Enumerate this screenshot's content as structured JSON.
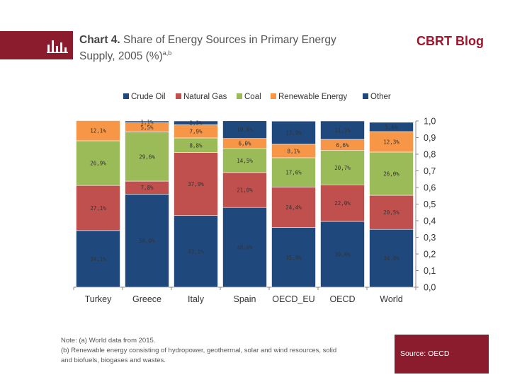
{
  "header": {
    "chart_label": "Chart 4.",
    "title_line1": "Share of Energy Sources in Primary Energy",
    "title_line2": "Supply, 2005 (%)",
    "title_superscript": "a,b",
    "blog_name": "CBRT Blog",
    "icon": "bar-chart-icon"
  },
  "note": {
    "line1": "Note: (a) World data from 2015.",
    "line2": "(b) Renewable energy consisting of hydropower, geothermal, solar and wind resources, solid",
    "line3": "and biofuels, biogases and wastes."
  },
  "source": {
    "text": "Source: OECD"
  },
  "colors": {
    "brand": "#8a1c2e",
    "crude_oil": "#1f497d",
    "natural_gas": "#c0504d",
    "coal": "#9bbb59",
    "renewable": "#f79646",
    "other": "#1f497d"
  },
  "chart_data": {
    "type": "bar",
    "stacked": true,
    "categories": [
      "Turkey",
      "Greece",
      "Italy",
      "Spain",
      "OECD_EU",
      "OECD",
      "World"
    ],
    "series": [
      {
        "name": "Crude Oil",
        "values": [
          0.341,
          0.56,
          0.431,
          0.48,
          0.359,
          0.396,
          0.348
        ],
        "labels": [
          "34,1%",
          "56,0%",
          "43,1%",
          "48,0%",
          "35,9%",
          "39,6%",
          "34,8%"
        ]
      },
      {
        "name": "Natural Gas",
        "values": [
          0.271,
          0.078,
          0.379,
          0.21,
          0.244,
          0.22,
          0.205
        ],
        "labels": [
          "27,1%",
          "7,8%",
          "37,9%",
          "21,0%",
          "24,4%",
          "22,0%",
          "20,5%"
        ]
      },
      {
        "name": "Coal",
        "values": [
          0.269,
          0.296,
          0.088,
          0.145,
          0.176,
          0.207,
          0.26
        ],
        "labels": [
          "26,9%",
          "29,6%",
          "8,8%",
          "14,5%",
          "17,6%",
          "20,7%",
          "26,0%"
        ]
      },
      {
        "name": "Renewable Energy",
        "values": [
          0.121,
          0.055,
          0.079,
          0.06,
          0.081,
          0.066,
          0.123
        ],
        "labels": [
          "12,1%",
          "5,5%",
          "7,9%",
          "6,0%",
          "8,1%",
          "6,6%",
          "12,3%"
        ]
      },
      {
        "name": "Other",
        "values": [
          0.0,
          0.011,
          0.023,
          0.106,
          0.139,
          0.111,
          0.056
        ],
        "labels": [
          "",
          "1,1%",
          "2,3%",
          "10,6%",
          "13,9%",
          "11,1%",
          "5,6%"
        ]
      }
    ],
    "yticks": [
      "0,0",
      "0,1",
      "0,2",
      "0,3",
      "0,4",
      "0,5",
      "0,6",
      "0,7",
      "0,8",
      "0,9",
      "1,0"
    ],
    "ylim": [
      0,
      1
    ],
    "y_axis_side": "right",
    "legend": "top",
    "grid": false
  }
}
